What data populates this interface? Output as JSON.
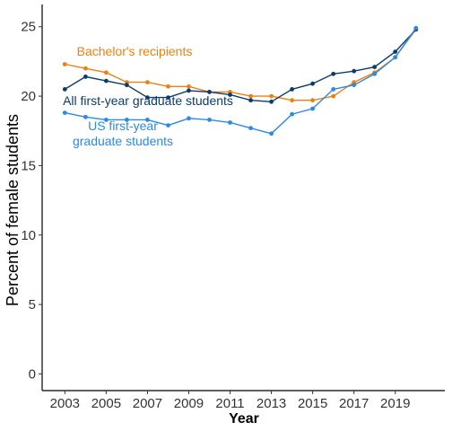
{
  "chart_data": {
    "type": "line",
    "title": "",
    "xlabel": "Year",
    "ylabel": "Percent of female students",
    "xlim": [
      2001.9,
      2021.4
    ],
    "ylim": [
      -1.2,
      26.6
    ],
    "x_ticks": [
      2003,
      2005,
      2007,
      2009,
      2011,
      2013,
      2015,
      2017,
      2019
    ],
    "y_ticks": [
      0,
      5,
      10,
      15,
      20,
      25
    ],
    "x_tick_labels": [
      "2003",
      "2005",
      "2007",
      "2009",
      "2011",
      "2013",
      "2015",
      "2017",
      "2019"
    ],
    "y_tick_labels": [
      "0",
      "5",
      "10",
      "15",
      "20",
      "25"
    ],
    "grid": false,
    "legend": "none",
    "series": [
      {
        "name": "Bachelor's recipients",
        "color": "#f07f12",
        "x": [
          2003,
          2004,
          2005,
          2006,
          2007,
          2008,
          2009,
          2010,
          2011,
          2012,
          2013,
          2014,
          2015,
          2016,
          2017,
          2018,
          2019,
          2020
        ],
        "values": [
          22.3,
          22.0,
          21.7,
          21.0,
          21.0,
          20.7,
          20.7,
          20.3,
          20.3,
          20.0,
          20.0,
          19.7,
          19.7,
          20.0,
          21.0,
          21.7,
          22.8,
          24.8
        ]
      },
      {
        "name": "All first-year graduate students",
        "color": "#0b3c6e",
        "x": [
          2003,
          2004,
          2005,
          2006,
          2007,
          2008,
          2009,
          2010,
          2011,
          2012,
          2013,
          2014,
          2015,
          2016,
          2017,
          2018,
          2019,
          2020
        ],
        "values": [
          20.5,
          21.4,
          21.1,
          20.8,
          19.9,
          19.9,
          20.4,
          20.3,
          20.1,
          19.7,
          19.6,
          20.5,
          20.9,
          21.6,
          21.8,
          22.1,
          23.2,
          24.8
        ]
      },
      {
        "name": "US first-year graduate students",
        "label_lines": [
          "US first-year",
          "graduate students"
        ],
        "color": "#2b8ae6",
        "x": [
          2003,
          2004,
          2005,
          2006,
          2007,
          2008,
          2009,
          2010,
          2011,
          2012,
          2013,
          2014,
          2015,
          2016,
          2017,
          2018,
          2019,
          2020
        ],
        "values": [
          18.8,
          18.5,
          18.3,
          18.3,
          18.3,
          17.9,
          18.4,
          18.3,
          18.1,
          17.7,
          17.3,
          18.7,
          19.1,
          20.5,
          20.8,
          21.6,
          22.8,
          24.9
        ]
      }
    ]
  }
}
